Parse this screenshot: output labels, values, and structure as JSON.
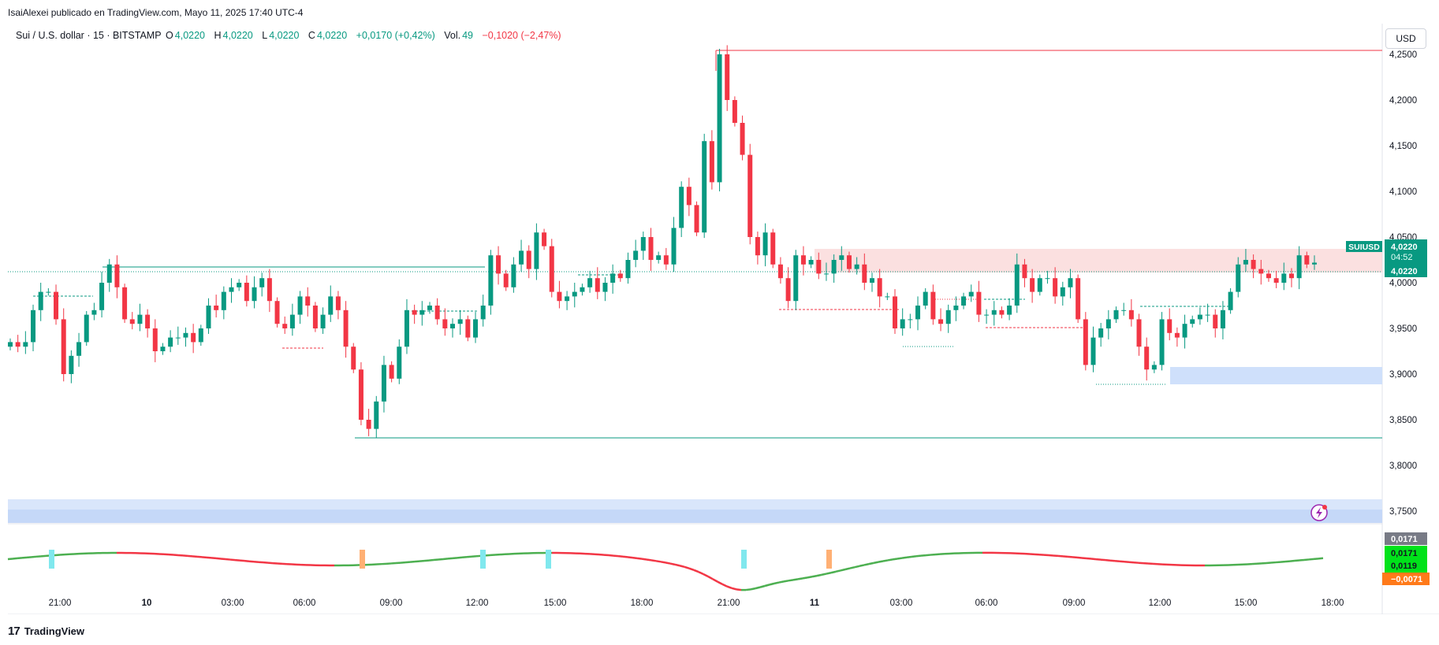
{
  "header": {
    "publisher": "IsaiAlexei publicado en TradingView.com, Mayo 11, 2025 17:40 UTC-4"
  },
  "legend": {
    "symbol": "Sui / U.S. dollar · 15 · BITSTAMP",
    "o_label": "O",
    "o": "4,0220",
    "h_label": "H",
    "h": "4,0220",
    "l_label": "L",
    "l": "4,0220",
    "c_label": "C",
    "c": "4,0220",
    "change": "+0,0170 (+0,42%)",
    "vol_label": "Vol.",
    "vol": "49",
    "vol_change": "−0,1020 (−2,47%)"
  },
  "currency_button": "USD",
  "price_tag": {
    "symbol": "SUIUSD",
    "price": "4,0220",
    "countdown": "04:52",
    "last": "4,0220"
  },
  "osc_tags": [
    "0,0171",
    "0,0171",
    "0,0119",
    "−0,0071"
  ],
  "footer": {
    "brand": "TradingView"
  },
  "chart_data": {
    "type": "candlestick",
    "y_axis": {
      "ticks": [
        3.75,
        3.8,
        3.85,
        3.9,
        3.95,
        4.0,
        4.05,
        4.1,
        4.15,
        4.2,
        4.25
      ],
      "tick_labels": [
        "3,7500",
        "3,8000",
        "3,8500",
        "3,9000",
        "3,9500",
        "4,0000",
        "4,0500",
        "4,1000",
        "4,1500",
        "4,2000",
        "4,2500"
      ]
    },
    "x_axis": {
      "tick_labels": [
        "21:00",
        "10",
        "03:00",
        "06:00",
        "09:00",
        "12:00",
        "15:00",
        "18:00",
        "21:00",
        "11",
        "03:00",
        "06:00",
        "09:00",
        "12:00",
        "15:00",
        "18:00"
      ]
    },
    "closes": [
      3.935,
      3.93,
      3.935,
      3.97,
      3.99,
      3.99,
      3.96,
      3.9,
      3.92,
      3.935,
      3.965,
      3.97,
      4.0,
      4.02,
      3.995,
      3.96,
      3.955,
      3.965,
      3.95,
      3.925,
      3.93,
      3.94,
      3.94,
      3.945,
      3.935,
      3.95,
      3.975,
      3.97,
      3.99,
      3.995,
      4.0,
      3.98,
      3.995,
      4.005,
      3.98,
      3.955,
      3.95,
      3.965,
      3.985,
      3.975,
      3.95,
      3.965,
      3.985,
      3.97,
      3.93,
      3.905,
      3.85,
      3.84,
      3.87,
      3.91,
      3.895,
      3.93,
      3.97,
      3.965,
      3.97,
      3.975,
      3.96,
      3.95,
      3.955,
      3.96,
      3.94,
      3.96,
      3.975,
      4.03,
      4.01,
      3.995,
      4.02,
      4.035,
      4.015,
      4.055,
      4.04,
      3.99,
      3.98,
      3.985,
      3.99,
      3.995,
      4.005,
      3.99,
      4.0,
      4.01,
      4.005,
      4.025,
      4.035,
      4.05,
      4.025,
      4.03,
      4.02,
      4.06,
      4.105,
      4.085,
      4.055,
      4.155,
      4.11,
      4.25,
      4.2,
      4.175,
      4.14,
      4.05,
      4.03,
      4.055,
      4.02,
      4.005,
      3.98,
      4.03,
      4.02,
      4.025,
      4.01,
      4.01,
      4.025,
      4.03,
      4.015,
      4.02,
      4.0,
      4.005,
      3.985,
      3.985,
      3.95,
      3.96,
      3.96,
      3.975,
      3.99,
      3.96,
      3.955,
      3.97,
      3.975,
      3.985,
      3.99,
      3.965,
      3.965,
      3.97,
      3.965,
      3.975,
      4.02,
      4.005,
      3.99,
      4.005,
      4.005,
      3.985,
      3.995,
      4.005,
      3.96,
      3.91,
      3.94,
      3.95,
      3.96,
      3.97,
      3.97,
      3.96,
      3.93,
      3.905,
      3.91,
      3.96,
      3.945,
      3.94,
      3.955,
      3.96,
      3.965,
      3.965,
      3.95,
      3.97,
      3.99,
      4.02,
      4.025,
      4.015,
      4.01,
      4.005,
      4.0,
      4.01,
      4.005,
      4.03,
      4.02,
      4.022
    ]
  }
}
